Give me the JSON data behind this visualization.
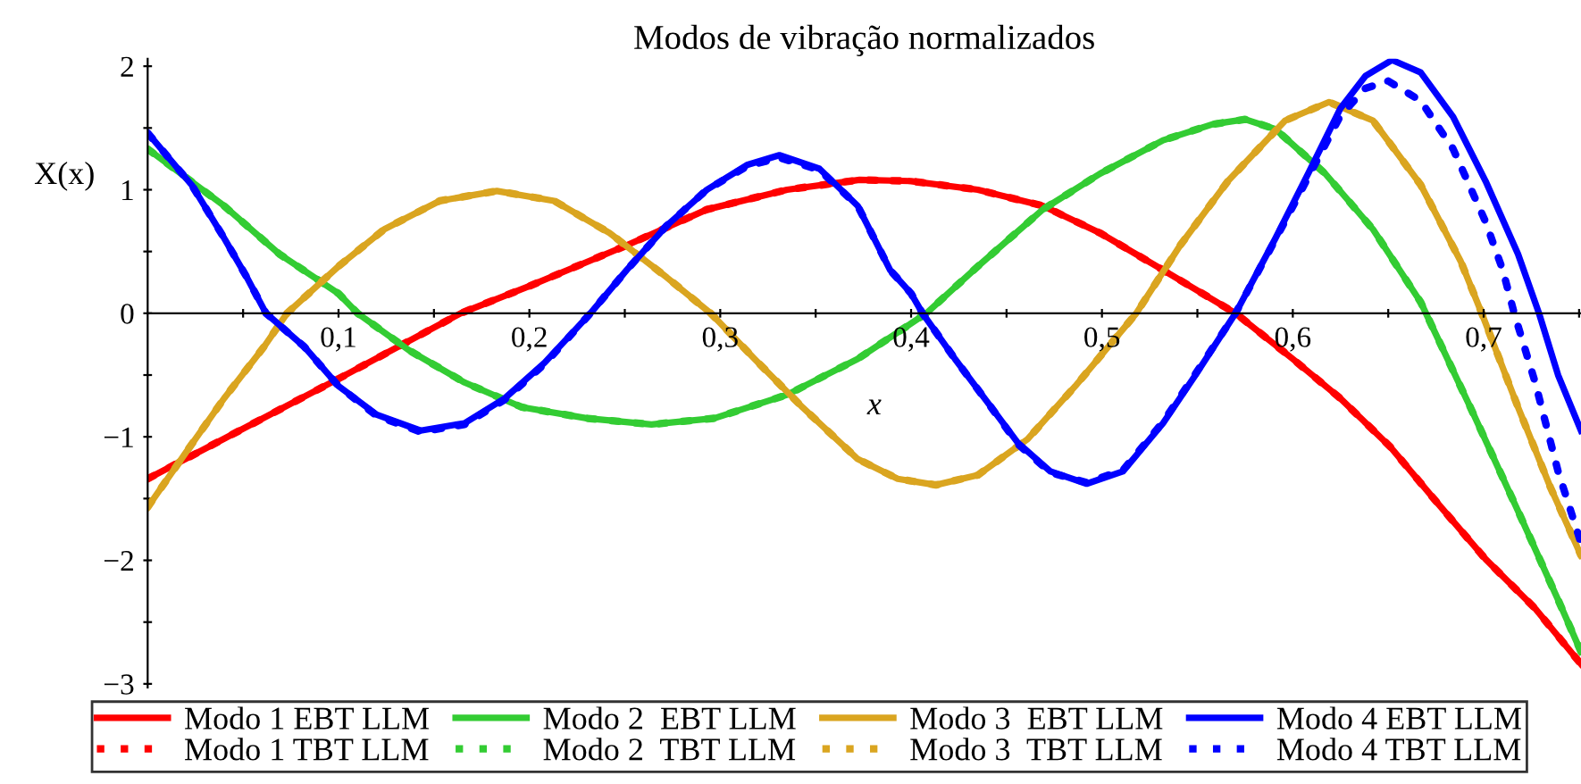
{
  "chart_data": {
    "type": "line",
    "title": "Modos de vibração normalizados",
    "xlabel": "x",
    "ylabel": "X(x)",
    "xlim": [
      0,
      0.751
    ],
    "ylim": [
      -3.03,
      2.06
    ],
    "xticks": [
      {
        "value": 0.05,
        "label": null
      },
      {
        "value": 0.1,
        "label": "0,1"
      },
      {
        "value": 0.15,
        "label": null
      },
      {
        "value": 0.2,
        "label": "0,2"
      },
      {
        "value": 0.25,
        "label": null
      },
      {
        "value": 0.3,
        "label": "0,3"
      },
      {
        "value": 0.35,
        "label": null
      },
      {
        "value": 0.4,
        "label": "0,4"
      },
      {
        "value": 0.45,
        "label": null
      },
      {
        "value": 0.5,
        "label": "0,5"
      },
      {
        "value": 0.55,
        "label": null
      },
      {
        "value": 0.6,
        "label": "0,6"
      },
      {
        "value": 0.65,
        "label": null
      },
      {
        "value": 0.7,
        "label": "0,7"
      },
      {
        "value": 0.75,
        "label": null
      }
    ],
    "yticks": [
      -3,
      {
        "value": -2.5,
        "label": null
      },
      -2,
      {
        "value": -1.5,
        "label": null
      },
      -1,
      {
        "value": -0.5,
        "label": null
      },
      0,
      {
        "value": 0.5,
        "label": null
      },
      1,
      {
        "value": 1.5,
        "label": null
      },
      2
    ],
    "grid": false,
    "legend": "bottom",
    "marker": "none",
    "series": [
      {
        "name": "Modo 1 EBT LLM",
        "color": "#ff0000",
        "line_style": "solid",
        "x": [
          0,
          0.1,
          0.164,
          0.2,
          0.251,
          0.293,
          0.335,
          0.373,
          0.4,
          0.435,
          0.469,
          0.499,
          0.532,
          0.57,
          0.6,
          0.625,
          0.651,
          0.676,
          0.701,
          0.727,
          0.751
        ],
        "values": [
          -1.34,
          -0.53,
          0,
          0.22,
          0.55,
          0.84,
          1.0,
          1.08,
          1.07,
          1.0,
          0.87,
          0.65,
          0.35,
          0,
          -0.37,
          -0.69,
          -1.08,
          -1.54,
          -1.99,
          -2.39,
          -2.84
        ]
      },
      {
        "name": "Modo 1 TBT LLM",
        "color": "#ff0000",
        "line_style": "dotted",
        "x": [
          0,
          0.1,
          0.164,
          0.2,
          0.251,
          0.293,
          0.335,
          0.373,
          0.4,
          0.435,
          0.469,
          0.499,
          0.532,
          0.57,
          0.6,
          0.625,
          0.651,
          0.676,
          0.701,
          0.727,
          0.751
        ],
        "values": [
          -1.34,
          -0.53,
          0,
          0.22,
          0.55,
          0.84,
          1.0,
          1.08,
          1.07,
          1.0,
          0.87,
          0.65,
          0.35,
          0,
          -0.37,
          -0.69,
          -1.08,
          -1.54,
          -1.99,
          -2.39,
          -2.84
        ]
      },
      {
        "name": "Modo 2  EBT LLM",
        "color": "#33cc33",
        "line_style": "solid",
        "x": [
          0,
          0.04,
          0.069,
          0.1,
          0.11,
          0.137,
          0.166,
          0.196,
          0.23,
          0.264,
          0.297,
          0.335,
          0.372,
          0.408,
          0.435,
          0.469,
          0.499,
          0.532,
          0.558,
          0.575,
          0.591,
          0.617,
          0.642,
          0.667,
          0.693,
          0.718,
          0.739,
          0.751
        ],
        "values": [
          1.33,
          0.87,
          0.48,
          0.16,
          0,
          -0.3,
          -0.56,
          -0.76,
          -0.85,
          -0.9,
          -0.85,
          -0.66,
          -0.37,
          0,
          0.38,
          0.84,
          1.13,
          1.4,
          1.53,
          1.57,
          1.49,
          1.13,
          0.68,
          0.09,
          -0.76,
          -1.6,
          -2.32,
          -2.74
        ]
      },
      {
        "name": "Modo 2  TBT LLM",
        "color": "#33cc33",
        "line_style": "dotted",
        "x": [
          0,
          0.04,
          0.069,
          0.1,
          0.11,
          0.137,
          0.166,
          0.196,
          0.23,
          0.264,
          0.297,
          0.335,
          0.372,
          0.408,
          0.435,
          0.469,
          0.499,
          0.532,
          0.558,
          0.575,
          0.591,
          0.617,
          0.642,
          0.667,
          0.693,
          0.718,
          0.739,
          0.751
        ],
        "values": [
          1.33,
          0.87,
          0.48,
          0.16,
          0,
          -0.3,
          -0.56,
          -0.76,
          -0.85,
          -0.9,
          -0.85,
          -0.66,
          -0.37,
          0,
          0.38,
          0.84,
          1.13,
          1.4,
          1.53,
          1.57,
          1.49,
          1.13,
          0.68,
          0.09,
          -0.76,
          -1.6,
          -2.32,
          -2.74
        ]
      },
      {
        "name": "Modo 3  EBT LLM",
        "color": "#daa520",
        "line_style": "solid",
        "x": [
          0,
          0.019,
          0.04,
          0.061,
          0.073,
          0.1,
          0.124,
          0.153,
          0.183,
          0.213,
          0.242,
          0.272,
          0.295,
          0.318,
          0.343,
          0.372,
          0.393,
          0.413,
          0.435,
          0.461,
          0.486,
          0.518,
          0.541,
          0.566,
          0.596,
          0.619,
          0.642,
          0.667,
          0.688,
          0.699,
          0.718,
          0.735,
          0.751
        ],
        "values": [
          -1.57,
          -1.15,
          -0.69,
          -0.27,
          0,
          0.38,
          0.68,
          0.91,
          0.99,
          0.91,
          0.65,
          0.29,
          0,
          -0.37,
          -0.76,
          -1.18,
          -1.34,
          -1.39,
          -1.31,
          -1.02,
          -0.59,
          0,
          0.55,
          1.07,
          1.56,
          1.71,
          1.56,
          1.04,
          0.42,
          0,
          -0.76,
          -1.41,
          -1.96
        ]
      },
      {
        "name": "Modo 3  TBT LLM",
        "color": "#daa520",
        "line_style": "dotted",
        "x": [
          0,
          0.019,
          0.04,
          0.061,
          0.073,
          0.1,
          0.124,
          0.153,
          0.183,
          0.213,
          0.242,
          0.272,
          0.295,
          0.318,
          0.343,
          0.372,
          0.393,
          0.413,
          0.435,
          0.461,
          0.486,
          0.518,
          0.541,
          0.566,
          0.596,
          0.619,
          0.642,
          0.667,
          0.688,
          0.699,
          0.718,
          0.735,
          0.751
        ],
        "values": [
          -1.57,
          -1.15,
          -0.69,
          -0.27,
          0,
          0.38,
          0.68,
          0.91,
          0.99,
          0.91,
          0.65,
          0.29,
          0,
          -0.37,
          -0.76,
          -1.18,
          -1.34,
          -1.39,
          -1.31,
          -1.02,
          -0.59,
          0,
          0.55,
          1.07,
          1.56,
          1.71,
          1.56,
          1.04,
          0.42,
          0,
          -0.76,
          -1.41,
          -1.96
        ]
      },
      {
        "name": "Modo 4 EBT LLM",
        "color": "#0000ff",
        "line_style": "solid",
        "x": [
          0,
          0.023,
          0.04,
          0.052,
          0.062,
          0.082,
          0.1,
          0.12,
          0.143,
          0.166,
          0.187,
          0.208,
          0.232,
          0.251,
          0.272,
          0.293,
          0.314,
          0.331,
          0.352,
          0.372,
          0.389,
          0.4,
          0.406,
          0.423,
          0.44,
          0.456,
          0.473,
          0.492,
          0.511,
          0.532,
          0.549,
          0.57,
          0.591,
          0.608,
          0.625,
          0.638,
          0.652,
          0.667,
          0.684,
          0.701,
          0.718,
          0.729,
          0.739,
          0.751
        ],
        "values": [
          1.46,
          1.04,
          0.61,
          0.29,
          0,
          -0.27,
          -0.59,
          -0.82,
          -0.95,
          -0.89,
          -0.69,
          -0.4,
          0,
          0.35,
          0.71,
          1.0,
          1.2,
          1.28,
          1.17,
          0.87,
          0.35,
          0.16,
          0,
          -0.37,
          -0.72,
          -1.05,
          -1.28,
          -1.38,
          -1.28,
          -0.89,
          -0.5,
          0,
          0.61,
          1.13,
          1.66,
          1.92,
          2.05,
          1.95,
          1.59,
          1.07,
          0.48,
          0,
          -0.5,
          -0.95
        ]
      },
      {
        "name": "Modo 4 TBT LLM",
        "color": "#0000ff",
        "line_style": "dotted",
        "x": [
          0,
          0.023,
          0.04,
          0.052,
          0.062,
          0.082,
          0.1,
          0.12,
          0.143,
          0.166,
          0.187,
          0.208,
          0.232,
          0.251,
          0.272,
          0.293,
          0.314,
          0.331,
          0.352,
          0.372,
          0.389,
          0.4,
          0.406,
          0.423,
          0.44,
          0.456,
          0.473,
          0.492,
          0.511,
          0.532,
          0.549,
          0.57,
          0.591,
          0.608,
          0.625,
          0.638,
          0.65,
          0.667,
          0.684,
          0.701,
          0.71,
          0.716,
          0.727,
          0.739,
          0.751
        ],
        "values": [
          1.46,
          1.04,
          0.61,
          0.29,
          0,
          -0.27,
          -0.59,
          -0.83,
          -0.96,
          -0.9,
          -0.7,
          -0.41,
          0,
          0.35,
          0.71,
          1.0,
          1.19,
          1.26,
          1.16,
          0.87,
          0.35,
          0.16,
          0,
          -0.37,
          -0.72,
          -1.06,
          -1.29,
          -1.37,
          -1.27,
          -0.88,
          -0.49,
          0,
          0.6,
          1.1,
          1.6,
          1.82,
          1.88,
          1.72,
          1.33,
          0.74,
          0.35,
          0,
          -0.56,
          -1.28,
          -1.86
        ]
      }
    ]
  }
}
